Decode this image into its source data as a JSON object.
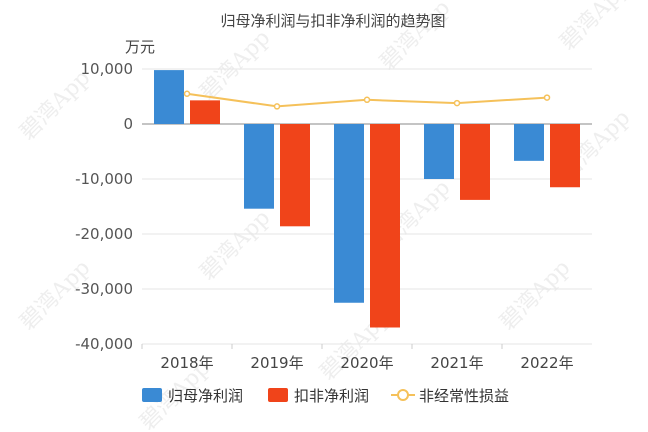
{
  "chart_data": {
    "type": "bar",
    "title": "归母净利润与扣非净利润的趋势图",
    "unit": "万元",
    "categories": [
      "2018年",
      "2019年",
      "2020年",
      "2021年",
      "2022年"
    ],
    "ylim": [
      -40000,
      10000
    ],
    "yticks": [
      10000,
      0,
      -10000,
      -20000,
      -30000,
      -40000
    ],
    "ytick_labels": [
      "10,000",
      "0",
      "-10,000",
      "-20,000",
      "-30,000",
      "-40,000"
    ],
    "grid": true,
    "legend_position": "bottom",
    "series": [
      {
        "name": "归母净利润",
        "type": "bar",
        "color": "#3a8ad4",
        "values": [
          9800,
          -15400,
          -32500,
          -10000,
          -6700
        ]
      },
      {
        "name": "扣非净利润",
        "type": "bar",
        "color": "#f0441a",
        "values": [
          4300,
          -18600,
          -37000,
          -13800,
          -11500
        ]
      },
      {
        "name": "非经常性损益",
        "type": "line",
        "color": "#f5c15a",
        "values": [
          5500,
          3200,
          4400,
          3800,
          4800
        ]
      }
    ]
  },
  "watermark": "碧湾App"
}
